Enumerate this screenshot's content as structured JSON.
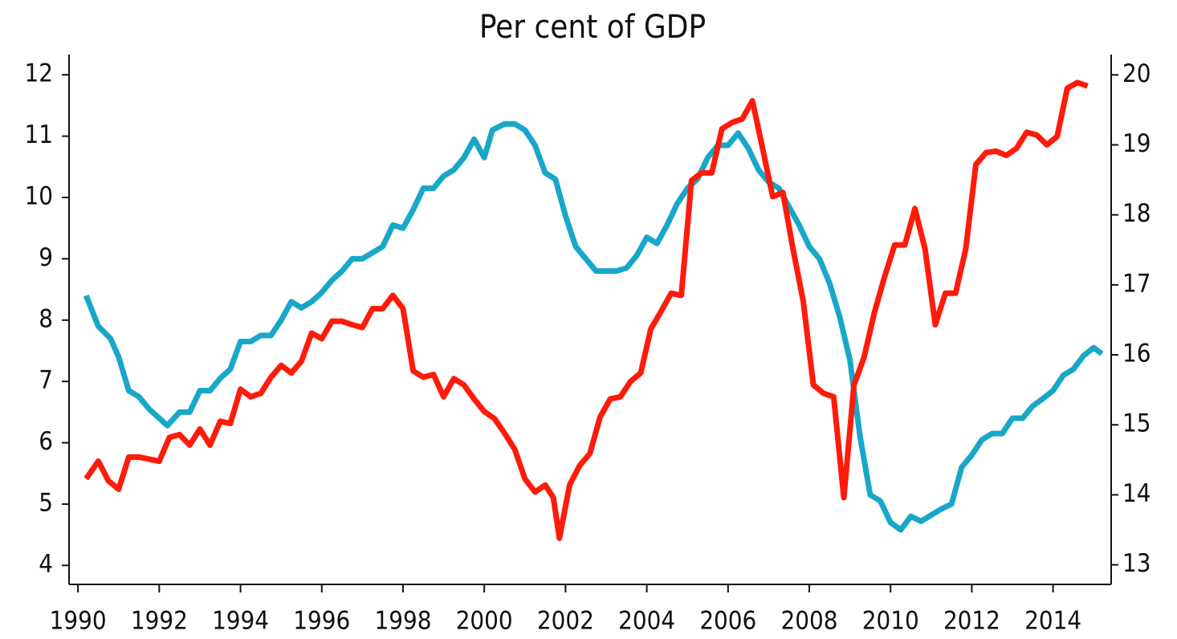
{
  "chart_data": {
    "type": "line",
    "title": "Per cent of GDP",
    "xlim": [
      1989.78,
      2015.43
    ],
    "xticks": [
      1990,
      1992,
      1994,
      1996,
      1998,
      2000,
      2002,
      2004,
      2006,
      2008,
      2010,
      2012,
      2014
    ],
    "ylim": [
      3.69,
      12.33
    ],
    "yticks": [
      4,
      5,
      6,
      7,
      8,
      9,
      10,
      11,
      12
    ],
    "y2lim": [
      12.72,
      20.29
    ],
    "y2ticks": [
      13,
      14,
      15,
      16,
      17,
      18,
      19,
      20
    ],
    "series": [
      {
        "color": "#18a7c9",
        "axis": "y",
        "x": [
          1990.2,
          1990.5,
          1990.8,
          1991.0,
          1991.25,
          1991.5,
          1991.75,
          1992.0,
          1992.2,
          1992.5,
          1992.75,
          1993.0,
          1993.25,
          1993.5,
          1993.75,
          1994.0,
          1994.25,
          1994.5,
          1994.75,
          1995.0,
          1995.25,
          1995.5,
          1995.75,
          1996.0,
          1996.25,
          1996.5,
          1996.75,
          1997.0,
          1997.25,
          1997.5,
          1997.75,
          1998.0,
          1998.25,
          1998.5,
          1998.75,
          1999.0,
          1999.25,
          1999.5,
          1999.75,
          2000.0,
          2000.2,
          2000.5,
          2000.75,
          2001.0,
          2001.25,
          2001.5,
          2001.75,
          2002.0,
          2002.25,
          2002.5,
          2002.75,
          2003.0,
          2003.25,
          2003.5,
          2003.75,
          2004.0,
          2004.25,
          2004.5,
          2004.75,
          2005.0,
          2005.25,
          2005.5,
          2005.75,
          2006.0,
          2006.25,
          2006.5,
          2006.75,
          2007.0,
          2007.25,
          2007.5,
          2007.75,
          2008.0,
          2008.25,
          2008.5,
          2008.75,
          2009.0,
          2009.25,
          2009.5,
          2009.75,
          2010.0,
          2010.25,
          2010.5,
          2010.75,
          2011.0,
          2011.25,
          2011.5,
          2011.75,
          2012.0,
          2012.25,
          2012.5,
          2012.75,
          2013.0,
          2013.25,
          2013.5,
          2013.75,
          2014.0,
          2014.25,
          2014.5,
          2014.75,
          2015.0,
          2015.2
        ],
        "values": [
          8.4,
          7.9,
          7.7,
          7.4,
          6.85,
          6.75,
          6.55,
          6.4,
          6.28,
          6.5,
          6.5,
          6.85,
          6.85,
          7.05,
          7.2,
          7.65,
          7.65,
          7.75,
          7.75,
          8.0,
          8.3,
          8.2,
          8.3,
          8.45,
          8.65,
          8.8,
          9.0,
          9.0,
          9.1,
          9.2,
          9.55,
          9.5,
          9.8,
          10.15,
          10.15,
          10.35,
          10.45,
          10.65,
          10.95,
          10.65,
          11.1,
          11.2,
          11.2,
          11.1,
          10.85,
          10.4,
          10.3,
          9.7,
          9.2,
          9.0,
          8.8,
          8.8,
          8.8,
          8.85,
          9.05,
          9.35,
          9.25,
          9.55,
          9.9,
          10.15,
          10.3,
          10.65,
          10.85,
          10.85,
          11.05,
          10.8,
          10.45,
          10.25,
          10.15,
          9.85,
          9.55,
          9.2,
          9.0,
          8.6,
          8.05,
          7.35,
          6.1,
          5.15,
          5.05,
          4.7,
          4.58,
          4.8,
          4.72,
          4.82,
          4.92,
          5.0,
          5.6,
          5.8,
          6.05,
          6.15,
          6.15,
          6.4,
          6.4,
          6.6,
          6.72,
          6.85,
          7.1,
          7.2,
          7.42,
          7.55,
          7.45
        ]
      },
      {
        "color": "#ff1a0a",
        "axis": "y2",
        "x": [
          1990.2,
          1990.5,
          1990.75,
          1991.0,
          1991.25,
          1991.5,
          1991.75,
          1992.0,
          1992.25,
          1992.5,
          1992.75,
          1993.0,
          1993.25,
          1993.5,
          1993.75,
          1994.0,
          1994.25,
          1994.5,
          1994.75,
          1995.0,
          1995.25,
          1995.5,
          1995.75,
          1996.0,
          1996.25,
          1996.5,
          1996.75,
          1997.0,
          1997.25,
          1997.5,
          1997.75,
          1998.0,
          1998.25,
          1998.5,
          1998.75,
          1999.0,
          1999.25,
          1999.5,
          1999.75,
          2000.0,
          2000.25,
          2000.5,
          2000.75,
          2001.0,
          2001.25,
          2001.5,
          2001.7,
          2001.85,
          2002.1,
          2002.35,
          2002.6,
          2002.85,
          2003.1,
          2003.35,
          2003.6,
          2003.85,
          2004.1,
          2004.35,
          2004.6,
          2004.85,
          2005.1,
          2005.35,
          2005.6,
          2005.85,
          2006.1,
          2006.35,
          2006.6,
          2006.85,
          2007.1,
          2007.35,
          2007.6,
          2007.85,
          2008.1,
          2008.35,
          2008.6,
          2008.85,
          2009.1,
          2009.35,
          2009.6,
          2009.85,
          2010.1,
          2010.35,
          2010.6,
          2010.85,
          2011.1,
          2011.35,
          2011.6,
          2011.85,
          2012.1,
          2012.35,
          2012.6,
          2012.85,
          2013.1,
          2013.35,
          2013.6,
          2013.85,
          2014.1,
          2014.35,
          2014.6,
          2014.85
        ],
        "values": [
          14.23,
          14.48,
          14.2,
          14.08,
          14.54,
          14.54,
          14.51,
          14.48,
          14.82,
          14.86,
          14.71,
          14.94,
          14.71,
          15.05,
          15.02,
          15.51,
          15.4,
          15.45,
          15.68,
          15.85,
          15.74,
          15.91,
          16.31,
          16.23,
          16.48,
          16.48,
          16.43,
          16.39,
          16.66,
          16.66,
          16.85,
          16.66,
          15.77,
          15.68,
          15.72,
          15.4,
          15.66,
          15.57,
          15.37,
          15.19,
          15.09,
          14.88,
          14.65,
          14.23,
          14.04,
          14.14,
          13.96,
          13.38,
          14.14,
          14.42,
          14.59,
          15.11,
          15.37,
          15.4,
          15.62,
          15.74,
          16.37,
          16.62,
          16.88,
          16.85,
          18.49,
          18.6,
          18.6,
          19.23,
          19.32,
          19.37,
          19.63,
          18.95,
          18.26,
          18.32,
          17.51,
          16.77,
          15.57,
          15.45,
          15.4,
          13.96,
          15.57,
          15.97,
          16.6,
          17.11,
          17.57,
          17.57,
          18.09,
          17.51,
          16.43,
          16.88,
          16.88,
          17.51,
          18.72,
          18.89,
          18.91,
          18.85,
          18.95,
          19.18,
          19.14,
          19.0,
          19.12,
          19.81,
          19.89,
          19.84
        ]
      }
    ]
  }
}
